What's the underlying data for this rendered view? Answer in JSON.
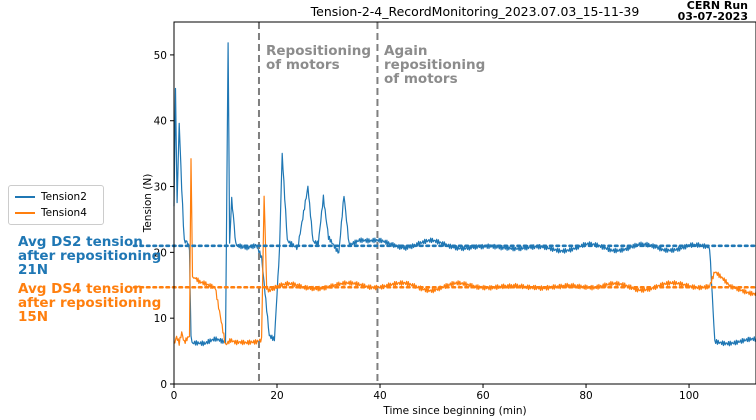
{
  "chart_data": {
    "type": "line",
    "title": "Tension-2-4_RecordMonitoring_2023.07.03_15-11-39",
    "corner_label": [
      "CERN Run",
      "03-07-2023"
    ],
    "xlabel": "Time since beginning (min)",
    "ylabel": "Tension (N)",
    "xlim": [
      0,
      113
    ],
    "ylim": [
      0,
      55
    ],
    "xticks": [
      0,
      20,
      40,
      60,
      80,
      100
    ],
    "yticks": [
      0,
      10,
      20,
      30,
      40,
      50
    ],
    "grid": false,
    "legend": {
      "placement": "left-outside",
      "entries": [
        "Tension2",
        "Tension4"
      ]
    },
    "colors": {
      "Tension2": "#1f77b4",
      "Tension4": "#ff7f0e",
      "vline": "#7f7f7f"
    },
    "series": [
      {
        "name": "Tension2",
        "x": [
          0,
          0.3,
          0.6,
          1.0,
          1.5,
          2.0,
          2.5,
          3.0,
          3.3,
          3.5,
          4,
          6,
          8,
          10,
          10.5,
          10.8,
          11.2,
          12,
          14,
          16,
          17,
          18.5,
          19.5,
          20.5,
          21,
          22,
          24,
          26,
          27,
          28,
          29,
          30,
          31,
          32,
          33,
          34,
          36,
          38,
          40,
          45,
          50,
          55,
          60,
          65,
          70,
          75,
          80,
          85,
          90,
          95,
          100,
          104,
          105,
          106,
          110,
          113
        ],
        "y": [
          27,
          45,
          28,
          40,
          30,
          22,
          22,
          21,
          7,
          6.5,
          6.5,
          6,
          6.5,
          6.2,
          51.5,
          22,
          28,
          21.5,
          21,
          21,
          19,
          7,
          6.5,
          20.5,
          35,
          22,
          21,
          30,
          21.5,
          21,
          28,
          22,
          21,
          20,
          29,
          21.5,
          22,
          21.5,
          21.5,
          21,
          21.5,
          21,
          20.5,
          21,
          20.5,
          20.5,
          21,
          20.5,
          21,
          20.5,
          21,
          20.5,
          6.5,
          6.5,
          6.5,
          6.5
        ]
      },
      {
        "name": "Tension4",
        "x": [
          0,
          0.5,
          1.0,
          1.5,
          2.0,
          2.5,
          3.0,
          3.3,
          3.6,
          4,
          5,
          6,
          8,
          10,
          11,
          12,
          14,
          16,
          17,
          17.5,
          18,
          18.5,
          20,
          22,
          25,
          30,
          35,
          40,
          45,
          50,
          55,
          60,
          65,
          70,
          75,
          80,
          85,
          90,
          95,
          100,
          104,
          105,
          108,
          113
        ],
        "y": [
          6,
          7,
          6,
          7.5,
          6,
          6.5,
          7,
          34,
          17,
          16,
          15.5,
          15.5,
          15,
          6,
          6.5,
          6,
          6,
          6.5,
          7,
          29,
          15,
          14.5,
          15,
          15,
          14.5,
          15,
          15,
          15,
          15,
          14.5,
          15,
          15,
          14.5,
          15,
          14.5,
          15,
          15,
          14.5,
          15,
          15,
          15,
          17,
          14.5,
          14
        ]
      }
    ],
    "vlines": [
      {
        "x": 16.5,
        "label": [
          "Repositioning",
          "of motors"
        ]
      },
      {
        "x": 39.5,
        "label": [
          "Again",
          "repositioning",
          "of motors"
        ]
      }
    ],
    "hlines": [
      {
        "y": 21,
        "color": "#1f77b4",
        "label": [
          "Avg DS2 tension",
          "after repositioning",
          "21N"
        ]
      },
      {
        "y": 14.7,
        "color": "#ff7f0e",
        "label": [
          "Avg DS4 tension",
          "after repositioning",
          "15N"
        ]
      }
    ]
  }
}
